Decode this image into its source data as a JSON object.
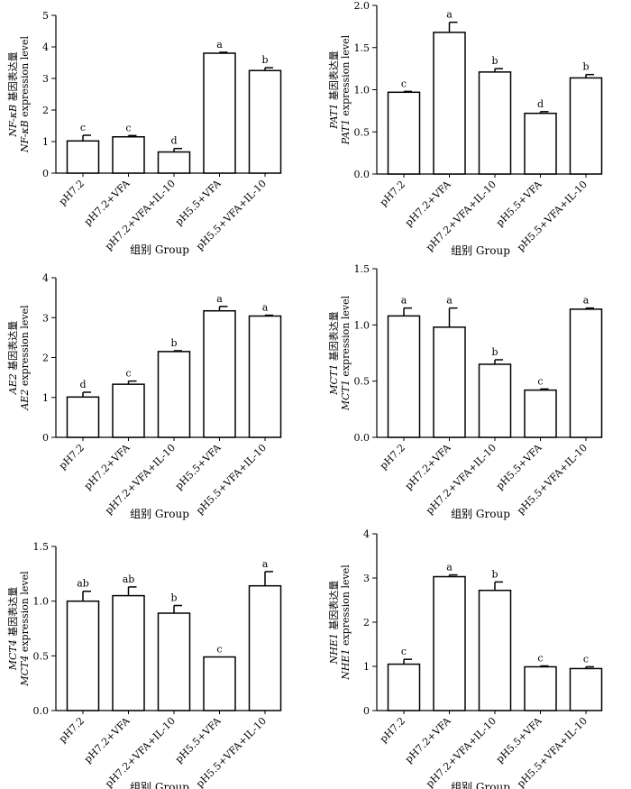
{
  "figure": {
    "x_label_cn": "组别",
    "x_label_en": "Group"
  },
  "chart_data": [
    {
      "type": "bar",
      "ylabel_cn": "NF-κB 基因表达量",
      "ylabel_en": "NF-κB expression level",
      "categories": [
        "pH7.2",
        "pH7.2+VFA",
        "pH7.2+VFA+IL-10",
        "pH5.5+VFA",
        "pH5.5+VFA+IL-10"
      ],
      "values": [
        1.02,
        1.15,
        0.67,
        3.8,
        3.25
      ],
      "errors": [
        0.18,
        0.04,
        0.11,
        0.03,
        0.09
      ],
      "significance": [
        "c",
        "c",
        "d",
        "a",
        "b"
      ],
      "ylim": [
        0,
        5
      ],
      "yticks": [
        "0",
        "1",
        "2",
        "3",
        "4",
        "5"
      ],
      "ytick_values": [
        0,
        1,
        2,
        3,
        4,
        5
      ]
    },
    {
      "type": "bar",
      "ylabel_cn": "PAT1 基因表达量",
      "ylabel_en": "PAT1 expression level",
      "categories": [
        "pH7.2",
        "pH7.2+VFA",
        "pH7.2+VFA+IL-10",
        "pH5.5+VFA",
        "pH5.5+VFA+IL-10"
      ],
      "values": [
        0.97,
        1.68,
        1.21,
        0.72,
        1.14
      ],
      "errors": [
        0.01,
        0.12,
        0.04,
        0.02,
        0.04
      ],
      "significance": [
        "c",
        "a",
        "b",
        "d",
        "b"
      ],
      "ylim": [
        0,
        2
      ],
      "yticks": [
        "0.0",
        "0.5",
        "1.0",
        "1.5",
        "2.0"
      ],
      "ytick_values": [
        0,
        0.5,
        1.0,
        1.5,
        2.0
      ]
    },
    {
      "type": "bar",
      "ylabel_cn": "AE2 基因表达量",
      "ylabel_en": "AE2 expression level",
      "categories": [
        "pH7.2",
        "pH7.2+VFA",
        "pH7.2+VFA+IL-10",
        "pH5.5+VFA",
        "pH5.5+VFA+IL-10"
      ],
      "values": [
        1.01,
        1.33,
        2.15,
        3.17,
        3.04
      ],
      "errors": [
        0.12,
        0.08,
        0.02,
        0.11,
        0.02
      ],
      "significance": [
        "d",
        "c",
        "b",
        "a",
        "a"
      ],
      "ylim": [
        0,
        4
      ],
      "yticks": [
        "0",
        "1",
        "2",
        "3",
        "4"
      ],
      "ytick_values": [
        0,
        1,
        2,
        3,
        4
      ]
    },
    {
      "type": "bar",
      "ylabel_cn": "MCT1 基因表达量",
      "ylabel_en": "MCT1 expression level",
      "categories": [
        "pH7.2",
        "pH7.2+VFA",
        "pH7.2+VFA+IL-10",
        "pH5.5+VFA",
        "pH5.5+VFA+IL-10"
      ],
      "values": [
        1.08,
        0.98,
        0.65,
        0.42,
        1.14
      ],
      "errors": [
        0.07,
        0.17,
        0.04,
        0.01,
        0.01
      ],
      "significance": [
        "a",
        "a",
        "b",
        "c",
        "a"
      ],
      "ylim": [
        0,
        1.5
      ],
      "yticks": [
        "0.0",
        "0.5",
        "1.0",
        "1.5"
      ],
      "ytick_values": [
        0,
        0.5,
        1.0,
        1.5
      ]
    },
    {
      "type": "bar",
      "ylabel_cn": "MCT4 基因表达量",
      "ylabel_en": "MCT4 expression level",
      "categories": [
        "pH7.2",
        "pH7.2+VFA",
        "pH7.2+VFA+IL-10",
        "pH5.5+VFA",
        "pH5.5+VFA+IL-10"
      ],
      "values": [
        1.0,
        1.05,
        0.89,
        0.49,
        1.14
      ],
      "errors": [
        0.09,
        0.08,
        0.07,
        0.0,
        0.13
      ],
      "significance": [
        "ab",
        "ab",
        "b",
        "c",
        "a"
      ],
      "ylim": [
        0,
        1.5
      ],
      "yticks": [
        "0.0",
        "0.5",
        "1.0",
        "1.5"
      ],
      "ytick_values": [
        0,
        0.5,
        1.0,
        1.5
      ]
    },
    {
      "type": "bar",
      "ylabel_cn": "NHE1 基因表达量",
      "ylabel_en": "NHE1 expression level",
      "categories": [
        "pH7.2",
        "pH7.2+VFA",
        "pH7.2+VFA+IL-10",
        "pH5.5+VFA",
        "pH5.5+VFA+IL-10"
      ],
      "values": [
        1.05,
        3.03,
        2.72,
        0.99,
        0.95
      ],
      "errors": [
        0.11,
        0.04,
        0.19,
        0.02,
        0.04
      ],
      "significance": [
        "c",
        "a",
        "b",
        "c",
        "c"
      ],
      "ylim": [
        0,
        4
      ],
      "yticks": [
        "0",
        "1",
        "2",
        "3",
        "4"
      ],
      "ytick_values": [
        0,
        1,
        2,
        3,
        4
      ]
    }
  ]
}
